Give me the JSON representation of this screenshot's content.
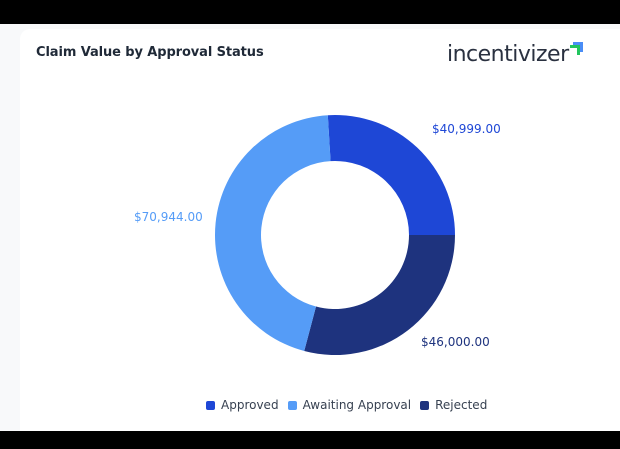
{
  "card": {
    "title": "Claim Value by Approval Status",
    "logo_text": "incentivizer"
  },
  "colors": {
    "approved": "#1e47d6",
    "awaiting": "#559cf7",
    "rejected": "#1e337e"
  },
  "labels": {
    "approved": "$40,999.00",
    "awaiting": "$70,944.00",
    "rejected": "$46,000.00"
  },
  "legend": {
    "items": [
      {
        "label": "Approved",
        "color": "#1e47d6"
      },
      {
        "label": "Awaiting Approval",
        "color": "#559cf7"
      },
      {
        "label": "Rejected",
        "color": "#1e337e"
      }
    ]
  },
  "chart_data": {
    "type": "pie",
    "variant": "donut",
    "title": "Claim Value by Approval Status",
    "categories": [
      "Approved",
      "Rejected",
      "Awaiting Approval"
    ],
    "values": [
      40999.0,
      46000.0,
      70944.0
    ],
    "value_labels": [
      "$40,999.00",
      "$46,000.00",
      "$70,944.00"
    ],
    "colors": [
      "#1e47d6",
      "#1e337e",
      "#559cf7"
    ],
    "legend_position": "bottom",
    "legend_order": [
      "Approved",
      "Awaiting Approval",
      "Rejected"
    ]
  }
}
